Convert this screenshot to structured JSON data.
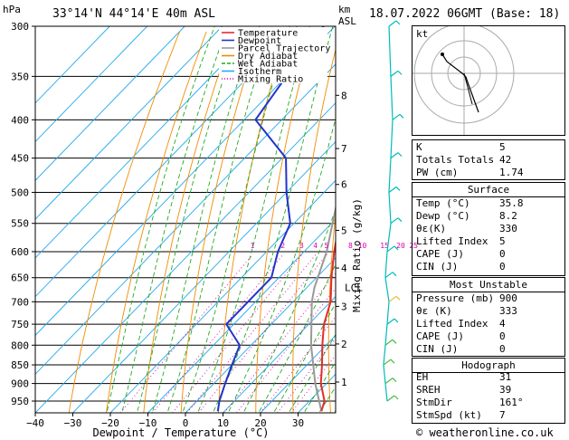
{
  "header": {
    "hpa_label": "hPa",
    "station": "33°14'N  44°14'E  40m  ASL",
    "km_label": "km",
    "asl_label": "ASL",
    "datetime": "18.07.2022  06GMT  (Base: 18)"
  },
  "legend": [
    "Temperature",
    "Dewpoint",
    "Parcel Trajectory",
    "Dry Adiabat",
    "Wet Adiabat",
    "Isotherm",
    "Mixing Ratio"
  ],
  "colors": {
    "temperature": "#e52c2c",
    "dewpoint": "#2233cc",
    "parcel": "#999999",
    "dry_adiabat": "#f08c00",
    "wet_adiabat": "#22aa22",
    "isotherm": "#22aaee",
    "mixing_ratio": "#dd00aa",
    "wind": "#00bbbb"
  },
  "chart_data": {
    "type": "skew-t",
    "xlabel": "Dewpoint / Temperature (°C)",
    "x_ticks": [
      "−40",
      "−30",
      "−20",
      "−10",
      "0",
      "10",
      "20",
      "30"
    ],
    "x_values": [
      -40,
      -30,
      -20,
      -10,
      0,
      10,
      20,
      30
    ],
    "p_levels": [
      300,
      350,
      400,
      450,
      500,
      550,
      600,
      650,
      700,
      750,
      800,
      850,
      900,
      950
    ],
    "p_labels": [
      "300",
      "350",
      "400",
      "450",
      "500",
      "550",
      "600",
      "650",
      "700",
      "750",
      "800",
      "850",
      "900",
      "950"
    ],
    "km_ticks": [
      {
        "label": "8",
        "p": 371
      },
      {
        "label": "7",
        "p": 437
      },
      {
        "label": "6",
        "p": 488
      },
      {
        "label": "5",
        "p": 562
      },
      {
        "label": "4",
        "p": 631
      },
      {
        "label": "3",
        "p": 710
      },
      {
        "label": "2",
        "p": 797
      },
      {
        "label": "1",
        "p": 896
      }
    ],
    "lcl": {
      "label": "LCL",
      "p": 670
    },
    "mixing_ratio_label": "Mixing Ratio (g/kg)",
    "mixing_ratio_values": [
      "1",
      "2",
      "3",
      "4",
      "5",
      "8",
      "10",
      "15",
      "20",
      "25"
    ],
    "temperature": [
      {
        "p": 980,
        "t": 35.8
      },
      {
        "p": 950,
        "t": 34
      },
      {
        "p": 900,
        "t": 28.5
      },
      {
        "p": 850,
        "t": 24
      },
      {
        "p": 800,
        "t": 19
      },
      {
        "p": 750,
        "t": 14
      },
      {
        "p": 700,
        "t": 10
      },
      {
        "p": 650,
        "t": 4
      },
      {
        "p": 600,
        "t": -2
      },
      {
        "p": 550,
        "t": -8
      },
      {
        "p": 500,
        "t": -14
      },
      {
        "p": 450,
        "t": -18
      },
      {
        "p": 400,
        "t": -24
      },
      {
        "p": 360,
        "t": -31
      },
      {
        "p": 350,
        "t": -33
      }
    ],
    "dewpoint": [
      {
        "p": 980,
        "t": 8.2
      },
      {
        "p": 950,
        "t": 6
      },
      {
        "p": 900,
        "t": 3
      },
      {
        "p": 850,
        "t": 0
      },
      {
        "p": 800,
        "t": -3
      },
      {
        "p": 750,
        "t": -12
      },
      {
        "p": 700,
        "t": -12
      },
      {
        "p": 650,
        "t": -12
      },
      {
        "p": 600,
        "t": -17
      },
      {
        "p": 550,
        "t": -21
      },
      {
        "p": 500,
        "t": -30
      },
      {
        "p": 450,
        "t": -39
      },
      {
        "p": 400,
        "t": -57
      },
      {
        "p": 350,
        "t": -60
      },
      {
        "p": 300,
        "t": -63
      }
    ],
    "parcel": [
      {
        "p": 980,
        "t": 35.8
      },
      {
        "p": 900,
        "t": 27
      },
      {
        "p": 800,
        "t": 16
      },
      {
        "p": 700,
        "t": 5
      },
      {
        "p": 670,
        "t": 2
      },
      {
        "p": 600,
        "t": -4
      },
      {
        "p": 500,
        "t": -16
      },
      {
        "p": 400,
        "t": -33
      },
      {
        "p": 300,
        "t": -52
      }
    ]
  },
  "hodograph": {
    "label": "kt"
  },
  "indices": {
    "rows": [
      {
        "k": "K",
        "v": "5"
      },
      {
        "k": "Totals Totals",
        "v": "42"
      },
      {
        "k": "PW (cm)",
        "v": "1.74"
      }
    ]
  },
  "surface": {
    "title": "Surface",
    "rows": [
      {
        "k": "Temp (°C)",
        "v": "35.8"
      },
      {
        "k": "Dewp (°C)",
        "v": "8.2"
      },
      {
        "k": "θε(K)",
        "v": "330"
      },
      {
        "k": "Lifted Index",
        "v": "5"
      },
      {
        "k": "CAPE (J)",
        "v": "0"
      },
      {
        "k": "CIN (J)",
        "v": "0"
      }
    ]
  },
  "most_unstable": {
    "title": "Most Unstable",
    "rows": [
      {
        "k": "Pressure (mb)",
        "v": "900"
      },
      {
        "k": "θε (K)",
        "v": "333"
      },
      {
        "k": "Lifted Index",
        "v": "4"
      },
      {
        "k": "CAPE (J)",
        "v": "0"
      },
      {
        "k": "CIN (J)",
        "v": "0"
      }
    ]
  },
  "hodo_params": {
    "title": "Hodograph",
    "rows": [
      {
        "k": "EH",
        "v": "31"
      },
      {
        "k": "SREH",
        "v": "39"
      },
      {
        "k": "StmDir",
        "v": "161°"
      },
      {
        "k": "StmSpd (kt)",
        "v": "7"
      }
    ]
  },
  "footer": "© weatheronline.co.uk"
}
